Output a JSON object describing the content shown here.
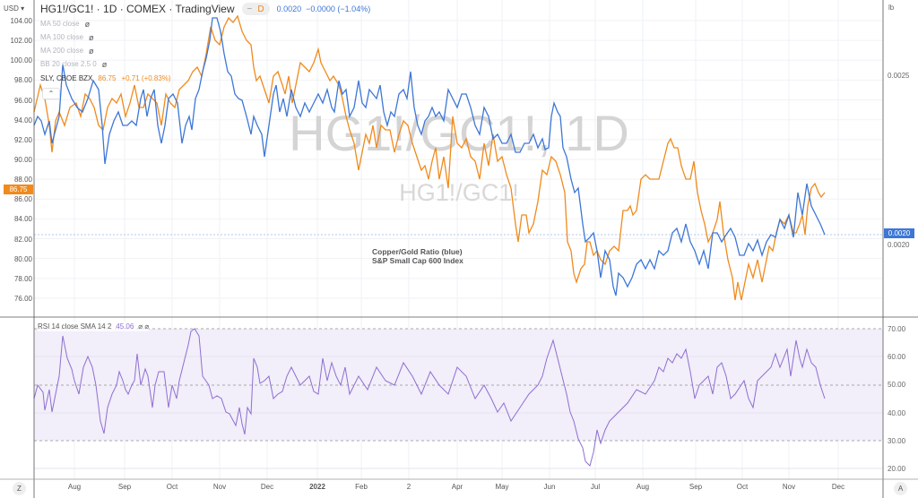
{
  "header": {
    "title": "HG1!/GC1! · 1D · COMEX · TradingView",
    "interval_badge": "D",
    "minus": "−",
    "price": "0.0020",
    "change": "−0.0000 (−1.04%)"
  },
  "currency_menu": "USD",
  "unit_label": "lb",
  "legend": [
    {
      "label": "MA 50 close"
    },
    {
      "label": "MA 100 close"
    },
    {
      "label": "MA 200 close"
    },
    {
      "label": "BB 20 close 2.5 0"
    }
  ],
  "compare": {
    "label": "SLY, CBOE BZX",
    "value": "86.75",
    "change": "+0.71 (+0.83%)"
  },
  "collapse_icon": "chevron-up",
  "watermark": {
    "big": "HG1!/GC1!, 1D",
    "small": "HG1!/GC1!"
  },
  "annotation": {
    "line1": "Copper/Gold Ratio (blue)",
    "line2": "S&P Small Cap 600 Index"
  },
  "left_axis": [
    "104.00",
    "102.00",
    "100.00",
    "98.00",
    "96.00",
    "94.00",
    "92.00",
    "90.00",
    "88.00",
    "86.00",
    "84.00",
    "82.00",
    "80.00",
    "78.00",
    "76.00"
  ],
  "left_price_tag": "86.75",
  "right_axis": [
    "0.0025",
    "0.0020"
  ],
  "right_price_tag": "0.0020",
  "rsi": {
    "label": "RSI 14 close SMA 14 2",
    "value": "45.06",
    "icons": "⌀ ⌀",
    "axis": [
      "70.00",
      "60.00",
      "50.00",
      "40.00",
      "30.00",
      "20.00"
    ]
  },
  "time_axis": [
    "Aug",
    "Sep",
    "Oct",
    "Nov",
    "Dec",
    "2022",
    "Feb",
    "2",
    "Apr",
    "May",
    "Jun",
    "Jul",
    "Aug",
    "Sep",
    "Oct",
    "Nov",
    "Dec"
  ],
  "zoom_button": "Z",
  "auto_button": "A",
  "colors": {
    "ratio": "#3d77d6",
    "sly": "#f08a1c",
    "rsi": "#8e6fd0",
    "rsi_band": "#f2eefa"
  }
}
